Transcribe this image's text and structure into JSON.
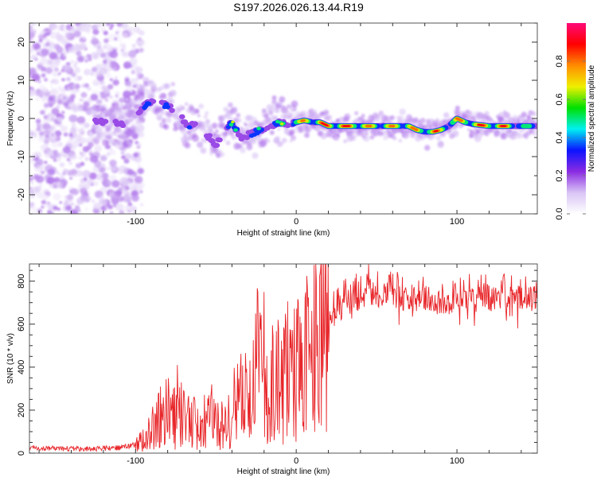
{
  "title": "S197.2026.026.13.44.R19",
  "chart_data": [
    {
      "type": "heatmap",
      "title": "S197.2026.026.13.44.R19",
      "xlabel": "Height of straight line (km)",
      "ylabel": "Frequency (Hz)",
      "xlim": [
        -166,
        150
      ],
      "ylim": [
        -25,
        25
      ],
      "xticks": [
        -100,
        0,
        100
      ],
      "yticks": [
        -20,
        -10,
        0,
        10,
        20
      ],
      "grid": false,
      "colorbar": {
        "label": "Normalized spectral amplitude",
        "range": [
          0,
          1
        ],
        "ticks": [
          "0.0",
          "0.2",
          "0.4",
          "0.6",
          "0.8"
        ],
        "colors": [
          "#ffffff",
          "#d9c4f5",
          "#8a2be2",
          "#0a14ff",
          "#00f0f0",
          "#00e000",
          "#f0f000",
          "#ff8c00",
          "#ff0000",
          "#ff0a78"
        ]
      },
      "ridge": {
        "description": "frequency ridge (Hz) vs height (km) with peak normalized amplitude",
        "x": [
          -125,
          -115,
          -105,
          -98,
          -92,
          -86,
          -80,
          -74,
          -68,
          -62,
          -56,
          -50,
          -44,
          -40,
          -34,
          -28,
          -22,
          -16,
          -10,
          -4,
          0,
          5,
          10,
          15,
          20,
          30,
          40,
          50,
          60,
          70,
          75,
          80,
          85,
          90,
          95,
          100,
          105,
          110,
          120,
          130,
          140,
          150
        ],
        "y": [
          -1,
          -1,
          -1.5,
          2,
          4,
          5,
          3,
          2,
          -2,
          -1,
          -4,
          -7,
          -3,
          -1,
          -5,
          -4,
          -3,
          -2,
          -1,
          -1.5,
          -1,
          -0.5,
          -1,
          -1,
          -2,
          -2,
          -2,
          -2,
          -2,
          -2,
          -3,
          -3.5,
          -3.5,
          -3,
          -2,
          0,
          -1,
          -1.5,
          -2,
          -2,
          -2,
          -2
        ],
        "amplitude": [
          0.25,
          0.3,
          0.2,
          0.3,
          0.4,
          0.35,
          0.35,
          0.3,
          0.35,
          0.3,
          0.3,
          0.3,
          0.3,
          0.55,
          0.35,
          0.4,
          0.45,
          0.5,
          0.55,
          0.6,
          0.65,
          0.8,
          0.75,
          0.85,
          0.9,
          0.9,
          0.9,
          0.7,
          0.75,
          0.85,
          0.8,
          0.85,
          0.85,
          0.8,
          0.75,
          0.8,
          0.8,
          0.9,
          0.9,
          0.88,
          0.55,
          0.5
        ]
      },
      "noise_region": {
        "x_from": -166,
        "x_to": -100,
        "amplitude": 0.1
      }
    },
    {
      "type": "line",
      "xlabel": "Height of straight line (km)",
      "ylabel": "SNR (10 * v/v)",
      "xlim": [
        -166,
        150
      ],
      "ylim": [
        0,
        880
      ],
      "xticks": [
        -100,
        0,
        100
      ],
      "yticks": [
        0,
        200,
        400,
        600,
        800
      ],
      "grid": false,
      "color": "#e8262a",
      "series": [
        {
          "name": "SNR",
          "x": [
            -166,
            -150,
            -130,
            -110,
            -100,
            -95,
            -90,
            -85,
            -80,
            -75,
            -70,
            -65,
            -60,
            -55,
            -50,
            -45,
            -40,
            -35,
            -30,
            -25,
            -22,
            -20,
            -15,
            -10,
            -5,
            0,
            5,
            10,
            13,
            15,
            20,
            25,
            30,
            40,
            50,
            60,
            70,
            80,
            90,
            100,
            110,
            120,
            130,
            140,
            150
          ],
          "y": [
            25,
            22,
            20,
            25,
            40,
            70,
            120,
            160,
            200,
            160,
            210,
            150,
            120,
            180,
            170,
            120,
            200,
            260,
            250,
            400,
            450,
            200,
            320,
            360,
            380,
            420,
            450,
            500,
            520,
            550,
            600,
            650,
            700,
            720,
            740,
            730,
            720,
            720,
            700,
            710,
            715,
            720,
            720,
            720,
            720
          ],
          "peaks": [
            {
              "x": -74,
              "y": 410
            },
            {
              "x": -24,
              "y": 750
            },
            {
              "x": -20,
              "y": 750
            },
            {
              "x": 15,
              "y": 840
            },
            {
              "x": 45,
              "y": 880
            }
          ]
        }
      ]
    }
  ]
}
